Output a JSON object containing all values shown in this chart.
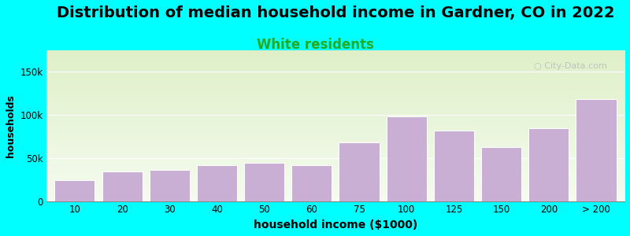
{
  "title": "Distribution of median household income in Gardner, CO in 2022",
  "subtitle": "White residents",
  "xlabel": "household income ($1000)",
  "ylabel": "households",
  "bar_labels": [
    "10",
    "20",
    "30",
    "40",
    "50",
    "60",
    "75",
    "100",
    "125",
    "150",
    "200",
    "> 200"
  ],
  "bar_values": [
    25000,
    35000,
    37000,
    42000,
    45000,
    42000,
    68000,
    98000,
    82000,
    63000,
    85000,
    118000
  ],
  "bar_color": "#c9afd4",
  "bar_edge_color": "#ffffff",
  "background_color": "#00ffff",
  "plot_bg_top_color": "#dff0c8",
  "plot_bg_bottom_color": "#f5fbf0",
  "ytick_values": [
    0,
    50000,
    100000,
    150000
  ],
  "ytick_labels": [
    "0",
    "50k",
    "100k",
    "150k"
  ],
  "ylim": [
    0,
    175000
  ],
  "title_fontsize": 14,
  "subtitle_fontsize": 12,
  "subtitle_color": "#22aa22",
  "watermark": "City-Data.com",
  "watermark_color": "#bbbbbb"
}
